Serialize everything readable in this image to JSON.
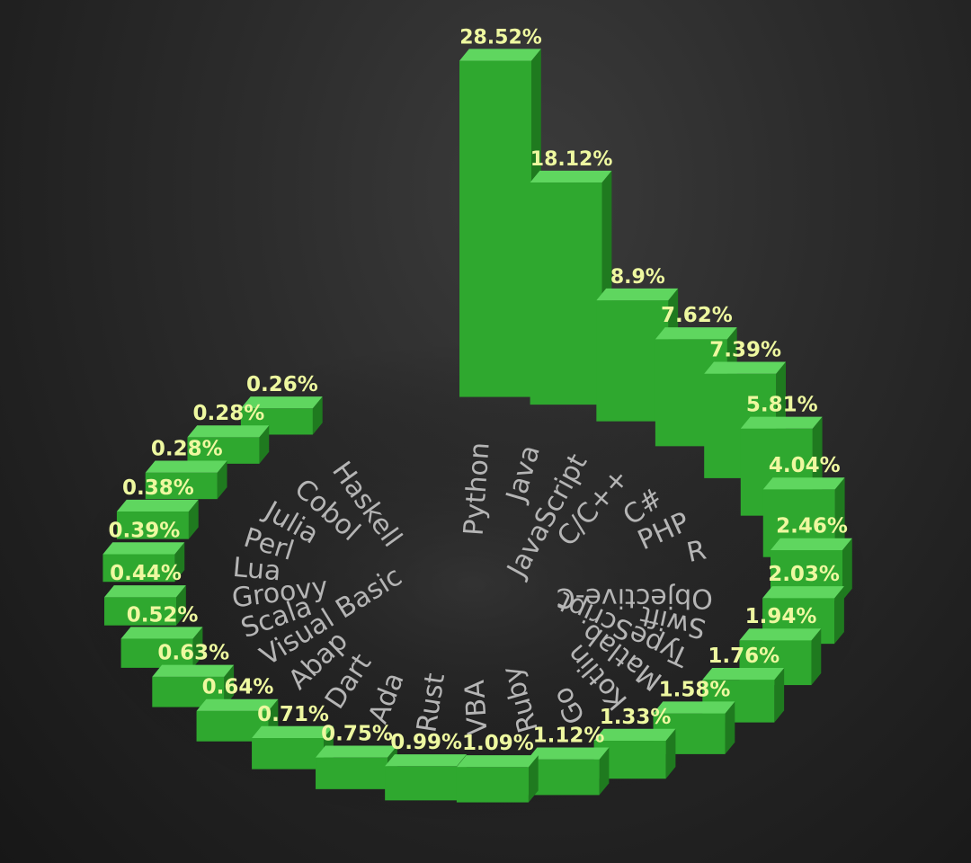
{
  "chart_data": {
    "type": "bar",
    "layout": "radial-3d",
    "title": "",
    "value_suffix": "%",
    "colors": {
      "bar_top": "#5fd65f",
      "bar_front": "#2fa82f",
      "bar_side": "#1f7a1f",
      "label": "#eef8a0",
      "category_text": "#b5b5b5"
    },
    "categories": [
      "Python",
      "Java",
      "JavaScript",
      "C/C++",
      "C#",
      "PHP",
      "R",
      "Objective-C",
      "Swift",
      "TypeScript",
      "Matlab",
      "Kotlin",
      "Go",
      "Ruby",
      "VBA",
      "Rust",
      "Ada",
      "Dart",
      "Abap",
      "Visual Basic",
      "Scala",
      "Groovy",
      "Lua",
      "Perl",
      "Julia",
      "Cobol",
      "Haskell"
    ],
    "values": [
      28.52,
      18.12,
      8.9,
      7.62,
      7.39,
      5.81,
      4.04,
      2.46,
      2.03,
      1.94,
      1.76,
      1.58,
      1.33,
      1.12,
      1.09,
      0.99,
      0.75,
      0.71,
      0.64,
      0.63,
      0.52,
      0.44,
      0.39,
      0.38,
      0.28,
      0.28,
      0.26
    ],
    "value_labels": [
      "28.52%",
      "18.12%",
      "8.9%",
      "7.62%",
      "7.39%",
      "5.81%",
      "4.04%",
      "2.46%",
      "2.03%",
      "1.94%",
      "1.76%",
      "1.58%",
      "1.33%",
      "1.12%",
      "1.09%",
      "0.99%",
      "0.75%",
      "0.71%",
      "0.64%",
      "0.63%",
      "0.52%",
      "0.44%",
      "0.39%",
      "0.38%",
      "0.28%",
      "0.28%",
      "0.26%"
    ]
  }
}
